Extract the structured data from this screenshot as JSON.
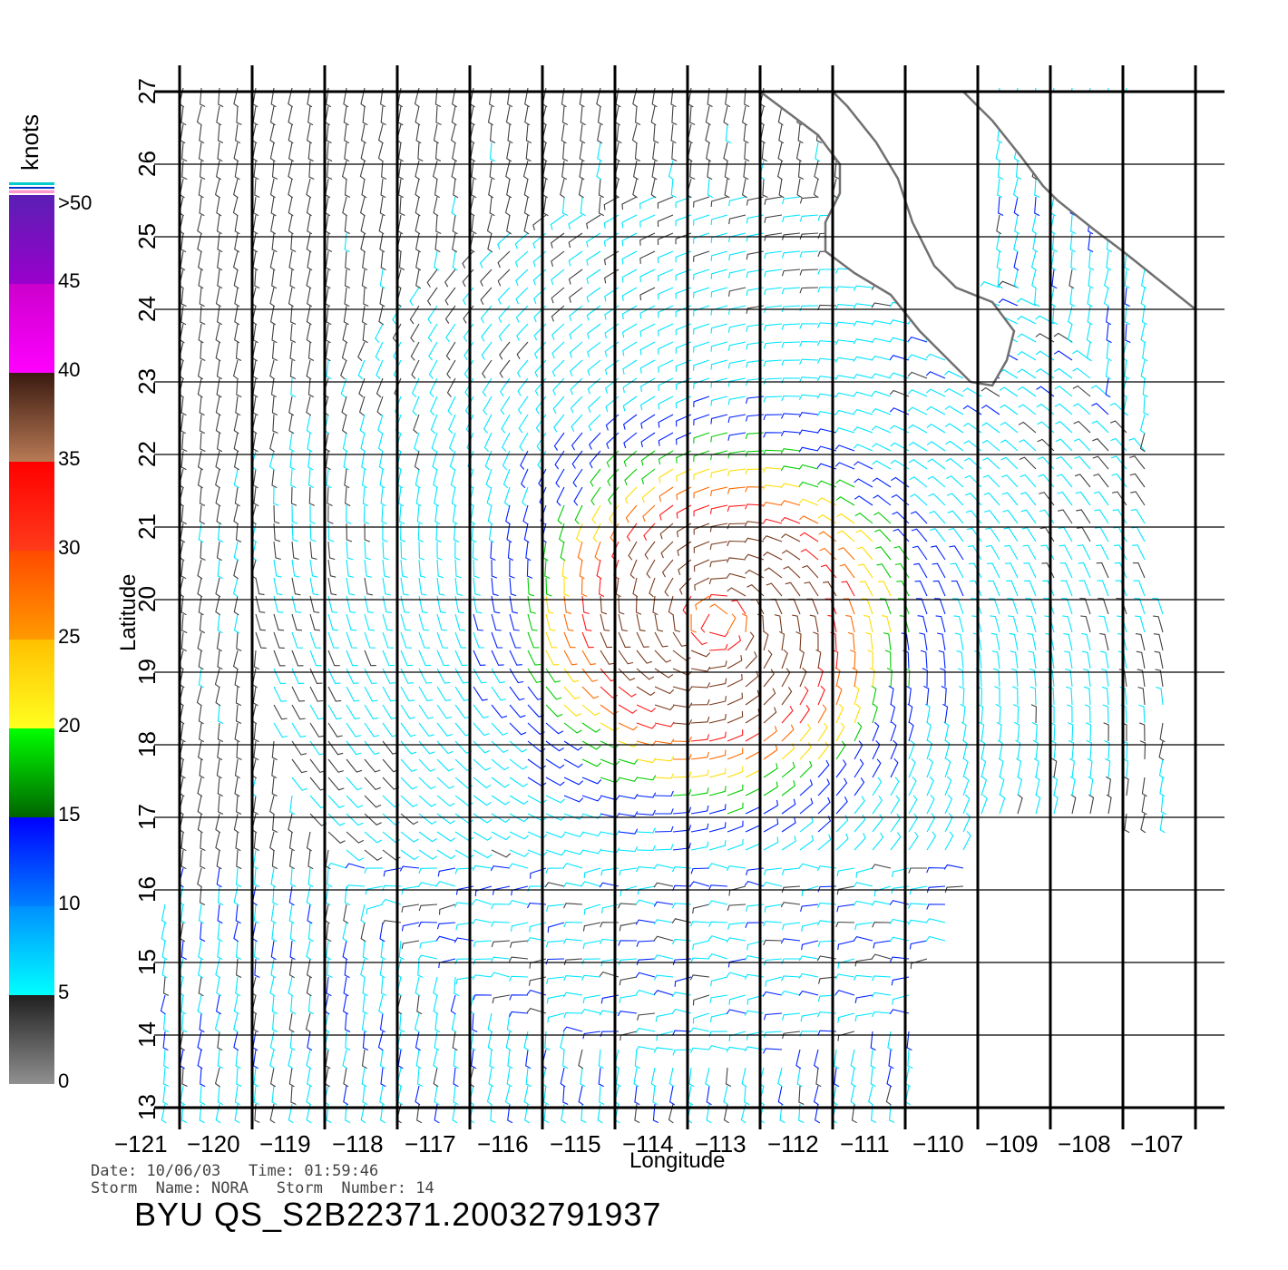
{
  "map": {
    "lon_ticks": [
      "-121",
      "-120",
      "-119",
      "-118",
      "-117",
      "-116",
      "-115",
      "-114",
      "-113",
      "-112",
      "-111",
      "-110",
      "-109",
      "-108",
      "-107"
    ],
    "lat_ticks": [
      "13",
      "14",
      "15",
      "16",
      "17",
      "18",
      "19",
      "20",
      "21",
      "22",
      "23",
      "24",
      "25",
      "26",
      "27"
    ],
    "xlabel": "Longitude",
    "ylabel": "Latitude",
    "lon_range": [
      -121,
      -107
    ],
    "lat_range": [
      13,
      27
    ],
    "storm_center": {
      "lon": -113.6,
      "lat": 19.7
    },
    "land_color": "#ffffff",
    "coast_color": "#707070"
  },
  "colorbar": {
    "unit": "knots",
    "labels": [
      ">50",
      "45",
      "40",
      "35",
      "30",
      "25",
      "20",
      "15",
      "10",
      "5",
      "0"
    ],
    "colors": {
      "0_5": "#404040",
      "5_10": "#00e5ff",
      "10_15": "#0022ff",
      "15_20": "#00cc00",
      "20_25": "#ffdd00",
      "25_30": "#ff6a00",
      "30_35": "#ff1a1a",
      "35_40": "#7a3b1e",
      "40_45": "#ff00ff",
      "45_50": "#8a00cc"
    }
  },
  "footer": {
    "line1": "Date: 10/06/03   Time: 01:59:46",
    "line2": "Storm  Name: NORA   Storm  Number: 14",
    "title": "BYU  QS_S2B22371.20032791937"
  }
}
